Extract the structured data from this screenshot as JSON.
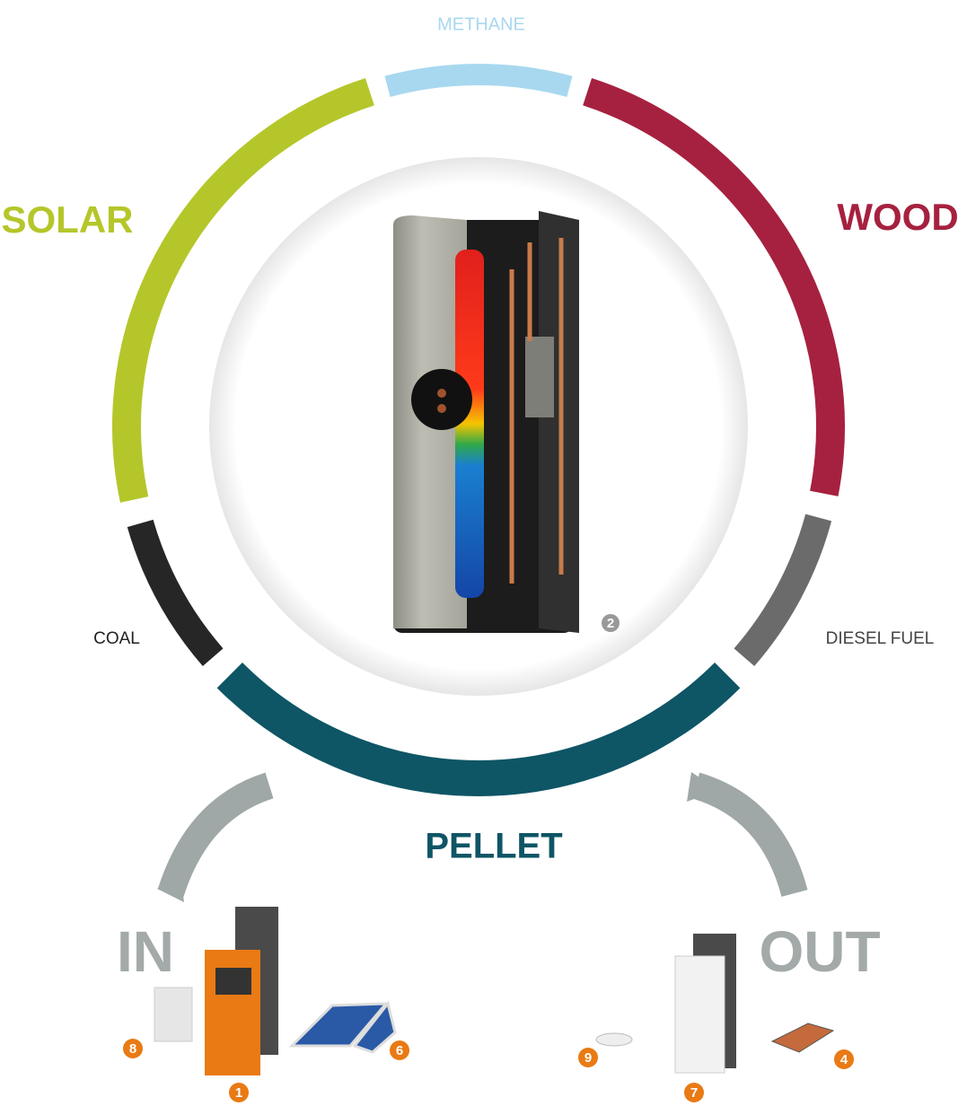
{
  "ring": {
    "top": "METHANE",
    "left": "SOLAR",
    "right": "WOOD",
    "lower_left": "COAL",
    "lower_right": "DIESEL FUEL",
    "bottom": "PELLET"
  },
  "center_badge": "2",
  "in": {
    "label": "IN",
    "badges": [
      "8",
      "1",
      "6"
    ]
  },
  "out": {
    "label": "OUT",
    "badges": [
      "9",
      "7",
      "4"
    ]
  }
}
